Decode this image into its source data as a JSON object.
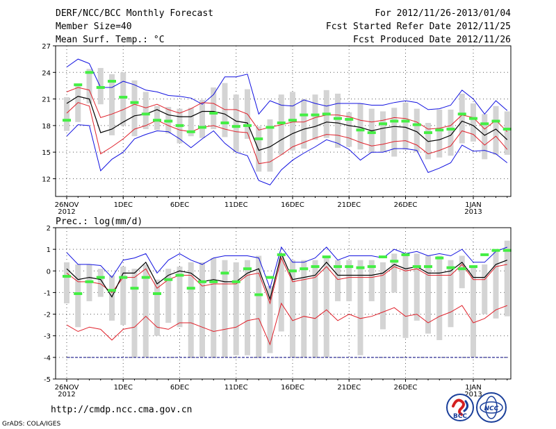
{
  "header": {
    "title": "DERF/NCC/BCC Monthly Forecast",
    "member": "Member Size=40",
    "variable": "Mean Surf. Temp.: °C",
    "period": "For 2012/11/26-2013/01/04",
    "started": "Fcst Started Refer Date 2012/11/25",
    "produced": "Fcst Produced Date 2012/11/26"
  },
  "footer": {
    "url": "http://cmdp.ncc.cma.gov.cn",
    "credit": "GrADS: COLA/IGES",
    "logo_bcc": "BCC",
    "logo_ncc": "NCC"
  },
  "colors": {
    "mean": "#000000",
    "sd": "#e0202a",
    "range": "#1010e0",
    "box": "#d4d4d4",
    "marker": "#44ee44",
    "dash": "#000080",
    "grid": "#555555"
  },
  "chart_data": [
    {
      "type": "line",
      "title": "Mean Surf. Temp.: °C",
      "x_days_from_start": [
        0,
        1,
        2,
        3,
        4,
        5,
        6,
        7,
        8,
        9,
        10,
        11,
        12,
        13,
        14,
        15,
        16,
        17,
        18,
        19,
        20,
        21,
        22,
        23,
        24,
        25,
        26,
        27,
        28,
        29,
        30,
        31,
        32,
        33,
        34,
        35,
        36,
        37,
        38,
        39
      ],
      "x_tick_labels": [
        {
          "day": 0,
          "label": "26NOV",
          "sub": "2012"
        },
        {
          "day": 5,
          "label": "1DEC"
        },
        {
          "day": 10,
          "label": "6DEC"
        },
        {
          "day": 15,
          "label": "11DEC"
        },
        {
          "day": 20,
          "label": "16DEC"
        },
        {
          "day": 25,
          "label": "21DEC"
        },
        {
          "day": 30,
          "label": "26DEC"
        },
        {
          "day": 36,
          "label": "1JAN",
          "sub": "2013"
        }
      ],
      "ylim": [
        10,
        27
      ],
      "yticks": [
        12,
        15,
        18,
        21,
        24,
        27
      ],
      "series": [
        {
          "name": "max",
          "values": [
            24.6,
            25.5,
            25.0,
            22.3,
            22.3,
            23.0,
            22.6,
            22.0,
            21.8,
            21.4,
            21.3,
            21.1,
            20.4,
            21.5,
            23.5,
            23.5,
            23.8,
            19.3,
            20.8,
            20.3,
            20.2,
            20.9,
            20.5,
            20.2,
            20.5,
            20.5,
            20.5,
            20.3,
            20.3,
            20.6,
            20.8,
            20.6,
            19.8,
            19.9,
            20.3,
            22.0,
            21.0,
            19.3,
            20.8,
            19.7
          ]
        },
        {
          "name": "sd_upper",
          "values": [
            21.8,
            22.3,
            22.0,
            18.9,
            19.3,
            19.8,
            20.4,
            20.0,
            20.4,
            19.8,
            19.4,
            19.9,
            20.6,
            20.5,
            19.8,
            19.8,
            19.3,
            17.5,
            17.8,
            18.1,
            18.4,
            18.4,
            18.9,
            19.2,
            19.2,
            19.0,
            18.6,
            18.4,
            18.6,
            18.9,
            18.8,
            18.4,
            17.6,
            17.7,
            18.0,
            19.2,
            18.9,
            17.6,
            18.6,
            17.3
          ]
        },
        {
          "name": "mean",
          "values": [
            20.5,
            21.3,
            21.0,
            17.2,
            17.6,
            18.4,
            19.1,
            19.3,
            19.8,
            19.2,
            19.0,
            19.0,
            19.6,
            19.6,
            19.3,
            18.5,
            18.3,
            15.2,
            15.6,
            16.4,
            17.1,
            17.6,
            17.9,
            18.4,
            18.3,
            18.0,
            17.8,
            17.4,
            17.7,
            17.9,
            17.8,
            17.3,
            16.2,
            16.4,
            16.9,
            18.5,
            18.0,
            16.9,
            17.6,
            16.4
          ]
        },
        {
          "name": "sd_lower",
          "values": [
            19.4,
            20.6,
            20.2,
            14.8,
            15.6,
            16.5,
            17.6,
            18.0,
            18.6,
            18.0,
            17.5,
            17.3,
            17.8,
            18.0,
            17.6,
            17.3,
            17.2,
            13.7,
            13.9,
            14.7,
            15.6,
            16.1,
            16.6,
            17.0,
            16.9,
            16.6,
            16.1,
            15.7,
            15.9,
            16.2,
            16.3,
            15.8,
            14.8,
            15.2,
            15.7,
            17.4,
            17.0,
            15.8,
            16.8,
            15.3
          ]
        },
        {
          "name": "min",
          "values": [
            16.8,
            18.1,
            18.0,
            12.9,
            14.2,
            15.0,
            16.5,
            17.0,
            17.4,
            17.3,
            16.5,
            15.5,
            16.5,
            17.4,
            16.0,
            15.0,
            14.6,
            11.8,
            11.3,
            13.0,
            14.1,
            14.9,
            15.6,
            16.4,
            16.0,
            15.3,
            14.1,
            15.0,
            15.0,
            15.4,
            15.4,
            15.2,
            12.7,
            13.2,
            13.8,
            15.8,
            15.1,
            15.2,
            14.8,
            13.8
          ]
        },
        {
          "name": "box_top",
          "values": [
            21.2,
            22.5,
            24.4,
            24.5,
            23.8,
            24.0,
            23.1,
            21.8,
            20.2,
            20.1,
            19.9,
            20.0,
            20.9,
            22.3,
            22.8,
            21.5,
            22.1,
            17.9,
            18.7,
            21.5,
            21.8,
            21.0,
            21.5,
            22.0,
            21.6,
            19.5,
            20.5,
            19.9,
            19.6,
            20.0,
            20.6,
            19.9,
            18.3,
            19.8,
            19.8,
            21.6,
            20.5,
            19.3,
            20.2,
            19.6
          ]
        },
        {
          "name": "box_bottom",
          "values": [
            17.4,
            18.4,
            20.5,
            20.4,
            16.9,
            18.0,
            16.8,
            17.6,
            17.5,
            17.1,
            16.0,
            16.8,
            16.6,
            17.6,
            16.7,
            15.0,
            16.5,
            12.8,
            12.8,
            14.7,
            15.2,
            15.4,
            16.4,
            16.6,
            15.5,
            15.6,
            15.3,
            14.9,
            15.0,
            14.5,
            15.3,
            15.0,
            14.2,
            14.4,
            14.6,
            16.0,
            16.2,
            14.2,
            14.7,
            14.7
          ]
        },
        {
          "name": "observed_marker",
          "values": [
            18.6,
            22.6,
            24.0,
            22.3,
            23.0,
            21.2,
            20.6,
            19.3,
            18.6,
            18.5,
            18.0,
            17.3,
            17.8,
            19.4,
            18.3,
            17.9,
            18.0,
            16.5,
            17.8,
            18.3,
            18.6,
            19.2,
            19.2,
            19.3,
            18.8,
            18.7,
            17.5,
            17.2,
            18.2,
            18.5,
            18.5,
            18.1,
            17.2,
            17.5,
            17.6,
            19.3,
            18.8,
            18.2,
            18.5,
            17.6
          ]
        }
      ]
    },
    {
      "type": "line",
      "title": "Prec.: log(mm/d)",
      "x_days_from_start": [
        0,
        1,
        2,
        3,
        4,
        5,
        6,
        7,
        8,
        9,
        10,
        11,
        12,
        13,
        14,
        15,
        16,
        17,
        18,
        19,
        20,
        21,
        22,
        23,
        24,
        25,
        26,
        27,
        28,
        29,
        30,
        31,
        32,
        33,
        34,
        35,
        36,
        37,
        38,
        39
      ],
      "x_tick_labels": [
        {
          "day": 0,
          "label": "26NOV",
          "sub": "2012"
        },
        {
          "day": 5,
          "label": "1DEC"
        },
        {
          "day": 10,
          "label": "6DEC"
        },
        {
          "day": 15,
          "label": "11DEC"
        },
        {
          "day": 20,
          "label": "16DEC"
        },
        {
          "day": 25,
          "label": "21DEC"
        },
        {
          "day": 30,
          "label": "26DEC"
        },
        {
          "day": 36,
          "label": "1JAN",
          "sub": "2013"
        }
      ],
      "ylim": [
        -5,
        2
      ],
      "yticks": [
        -5,
        -4,
        -3,
        -2,
        -1,
        0,
        1,
        2
      ],
      "series": [
        {
          "name": "max",
          "values": [
            0.85,
            0.3,
            0.3,
            0.25,
            -0.3,
            0.5,
            0.6,
            0.8,
            -0.1,
            0.5,
            0.8,
            0.5,
            0.3,
            0.6,
            0.7,
            0.7,
            0.7,
            0.6,
            -0.8,
            1.1,
            0.4,
            0.4,
            0.6,
            1.1,
            0.5,
            0.7,
            0.7,
            0.7,
            0.6,
            1.0,
            0.8,
            0.9,
            0.7,
            0.8,
            0.7,
            1.0,
            0.4,
            0.4,
            0.9,
            1.1
          ]
        },
        {
          "name": "sd_upper",
          "values": [
            -0.1,
            -0.5,
            -0.5,
            -0.6,
            -1.0,
            -0.3,
            -0.3,
            0.1,
            -0.8,
            -0.4,
            -0.2,
            -0.2,
            -0.7,
            -0.6,
            -0.6,
            -0.6,
            -0.2,
            -0.1,
            -1.5,
            0.6,
            -0.5,
            -0.4,
            -0.3,
            0.2,
            -0.4,
            -0.3,
            -0.3,
            -0.3,
            -0.2,
            0.2,
            0.0,
            0.1,
            -0.2,
            -0.2,
            -0.2,
            0.3,
            -0.4,
            -0.4,
            0.2,
            0.3
          ]
        },
        {
          "name": "mean",
          "values": [
            0.1,
            -0.4,
            -0.3,
            -0.4,
            -1.2,
            -0.1,
            -0.1,
            0.4,
            -0.6,
            -0.2,
            0.0,
            -0.1,
            -0.5,
            -0.4,
            -0.5,
            -0.5,
            -0.1,
            0.1,
            -1.3,
            0.8,
            -0.4,
            -0.3,
            -0.2,
            0.4,
            -0.2,
            -0.2,
            -0.2,
            -0.2,
            -0.1,
            0.3,
            0.1,
            0.2,
            -0.1,
            -0.1,
            0.0,
            0.4,
            -0.3,
            -0.3,
            0.3,
            0.5
          ]
        },
        {
          "name": "sd_lower",
          "values": [
            -2.5,
            -2.8,
            -2.6,
            -2.7,
            -3.2,
            -2.7,
            -2.6,
            -2.1,
            -2.6,
            -2.7,
            -2.4,
            -2.4,
            -2.6,
            -2.8,
            -2.7,
            -2.6,
            -2.3,
            -2.2,
            -3.4,
            -1.5,
            -2.3,
            -2.1,
            -2.2,
            -1.8,
            -2.3,
            -2.0,
            -2.2,
            -2.1,
            -1.9,
            -1.7,
            -2.1,
            -2.0,
            -2.4,
            -2.1,
            -1.9,
            -1.6,
            -2.4,
            -2.2,
            -1.8,
            -1.6
          ]
        },
        {
          "name": "min_dash",
          "values": [
            -4,
            -4,
            -4,
            -4,
            -4,
            -4,
            -4,
            -4,
            -4,
            -4,
            -4,
            -4,
            -4,
            -4,
            -4,
            -4,
            -4,
            -4,
            -4,
            -4,
            -4,
            -4,
            -4,
            -4,
            -4,
            -4,
            -4,
            -4,
            -4,
            -4,
            -4,
            -4,
            -4,
            -4,
            -4,
            -4,
            -4,
            -4,
            -4,
            -4
          ]
        },
        {
          "name": "box_top",
          "values": [
            0.4,
            0.3,
            0.3,
            0.1,
            -0.2,
            0.2,
            0.1,
            0.3,
            -0.4,
            0.1,
            0.2,
            0.4,
            0.4,
            0.6,
            0.5,
            0.4,
            0.5,
            0.7,
            -0.7,
            0.8,
            0.5,
            0.5,
            0.5,
            0.7,
            0.5,
            0.5,
            0.5,
            0.5,
            0.4,
            0.8,
            0.7,
            0.8,
            0.7,
            0.7,
            0.5,
            0.7,
            0.2,
            0.3,
            0.9,
            1.4
          ]
        },
        {
          "name": "box_bottom",
          "values": [
            -1.5,
            -2.6,
            -1.4,
            -1.2,
            -2.3,
            -2.5,
            -4.0,
            -4.0,
            -3.0,
            -2.4,
            -2.6,
            -4.0,
            -4.0,
            -4.0,
            -4.0,
            -3.9,
            -3.9,
            -4.0,
            -3.8,
            -2.8,
            -4.0,
            -4.0,
            -4.0,
            -4.0,
            -1.4,
            -1.4,
            -3.9,
            -1.4,
            -2.7,
            -1.0,
            -3.1,
            -2.3,
            -2.9,
            -3.2,
            -2.6,
            -0.8,
            -4.0,
            -2.0,
            -2.2,
            -2.1
          ]
        },
        {
          "name": "observed_marker",
          "values": [
            -0.25,
            -1.05,
            -0.5,
            -0.3,
            -0.9,
            -0.3,
            -0.8,
            -0.3,
            -1.05,
            -0.4,
            -0.2,
            -0.8,
            -0.5,
            -0.5,
            -0.1,
            -0.5,
            0.1,
            -1.1,
            -0.3,
            0.75,
            0.0,
            0.1,
            0.2,
            0.65,
            0.2,
            0.2,
            0.15,
            0.2,
            0.65,
            0.45,
            0.75,
            0.2,
            0.2,
            0.6,
            0.15,
            0.1,
            0.2,
            0.75,
            0.95,
            0.95
          ]
        }
      ]
    }
  ]
}
